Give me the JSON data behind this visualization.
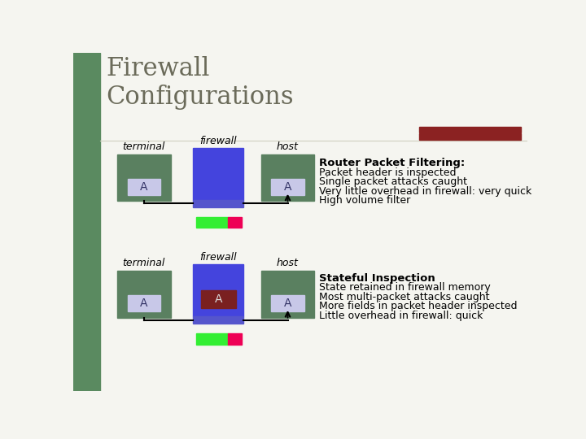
{
  "bg_color": "#f5f5f0",
  "left_bar_color": "#5a8a60",
  "title": "Firewall\nConfigurations",
  "title_color": "#6b6b5a",
  "title_fontsize": 22,
  "green_box_color": "#5a8060",
  "blue_fw_color": "#4444dd",
  "blue_fw_bottom": "#5555cc",
  "a_box_color": "#c8c8e8",
  "dark_red_a_color": "#7a2020",
  "packet_green": "#33ee33",
  "packet_red": "#ee0055",
  "sep_bar_color": "#8b2222",
  "section1": {
    "terminal_label": "terminal",
    "host_label": "host",
    "firewall_label": "firewall",
    "title": "Router Packet Filtering:",
    "lines": [
      "Packet header is inspected",
      "Single packet attacks caught",
      "Very little overhead in firewall: very quick",
      "High volume filter"
    ]
  },
  "section2": {
    "terminal_label": "terminal",
    "host_label": "host",
    "firewall_label": "firewall",
    "title": "Stateful Inspection",
    "lines": [
      "State retained in firewall memory",
      "Most multi-packet attacks caught",
      "More fields in packet header inspected",
      "Little overhead in firewall: quick"
    ]
  }
}
